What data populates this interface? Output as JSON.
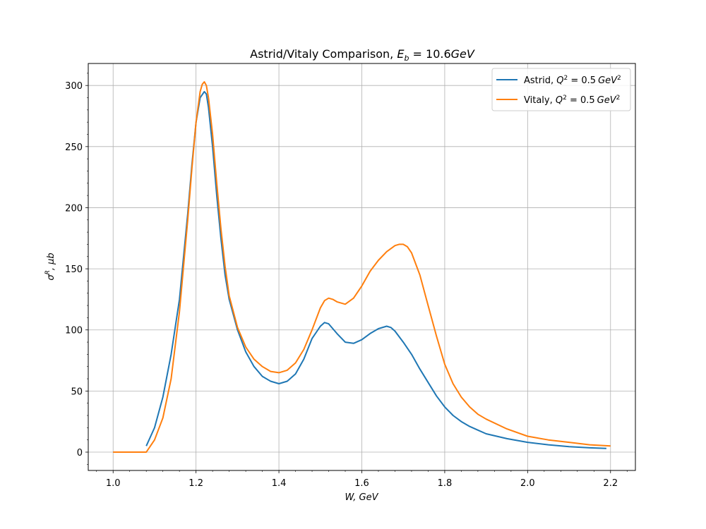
{
  "chart_data": {
    "type": "line",
    "title_prefix": "Astrid/Vitaly Comparison, ",
    "title_var": "E",
    "title_sub": "b",
    "title_suffix": " = 10.6",
    "title_unit": "GeV",
    "xlabel": "W, GeV",
    "ylabel_sym": "σ",
    "ylabel_sup": "R",
    "ylabel_rest": ", μb",
    "xlim": [
      0.94,
      2.26
    ],
    "ylim": [
      -15,
      318
    ],
    "xticks": [
      1.0,
      1.2,
      1.4,
      1.6,
      1.8,
      2.0,
      2.2
    ],
    "xtick_labels": [
      "1.0",
      "1.2",
      "1.4",
      "1.6",
      "1.8",
      "2.0",
      "2.2"
    ],
    "yticks": [
      0,
      50,
      100,
      150,
      200,
      250,
      300
    ],
    "ytick_labels": [
      "0",
      "50",
      "100",
      "150",
      "200",
      "250",
      "300"
    ],
    "grid": true,
    "legend_position": "top-right",
    "series": [
      {
        "name": "Astrid",
        "legend_prefix": "Astrid, ",
        "legend_q": "Q",
        "legend_q_sup": "2",
        "legend_eq": " = 0.5",
        "legend_unit": "GeV",
        "legend_unit_sup": "2",
        "color": "#1f77b4",
        "x": [
          1.08,
          1.1,
          1.12,
          1.14,
          1.16,
          1.18,
          1.19,
          1.2,
          1.21,
          1.22,
          1.225,
          1.23,
          1.24,
          1.25,
          1.26,
          1.27,
          1.28,
          1.3,
          1.32,
          1.34,
          1.36,
          1.38,
          1.4,
          1.42,
          1.44,
          1.46,
          1.48,
          1.5,
          1.51,
          1.52,
          1.53,
          1.54,
          1.56,
          1.58,
          1.6,
          1.62,
          1.64,
          1.66,
          1.67,
          1.68,
          1.7,
          1.72,
          1.74,
          1.76,
          1.78,
          1.8,
          1.82,
          1.84,
          1.86,
          1.88,
          1.9,
          1.95,
          2.0,
          2.05,
          2.1,
          2.15,
          2.19
        ],
        "y": [
          5,
          20,
          45,
          80,
          125,
          195,
          235,
          270,
          290,
          295,
          293,
          282,
          250,
          210,
          175,
          145,
          125,
          100,
          82,
          70,
          62,
          58,
          56,
          58,
          64,
          76,
          93,
          103,
          106,
          105,
          101,
          97,
          90,
          89,
          92,
          97,
          101,
          103,
          102,
          99,
          90,
          80,
          68,
          57,
          46,
          37,
          30,
          25,
          21,
          18,
          15,
          11,
          8,
          6,
          4.5,
          3.5,
          3
        ]
      },
      {
        "name": "Vitaly",
        "legend_prefix": "Vitaly, ",
        "legend_q": "Q",
        "legend_q_sup": "2",
        "legend_eq": " = 0.5",
        "legend_unit": "GeV",
        "legend_unit_sup": "2",
        "color": "#ff7f0e",
        "x": [
          1.0,
          1.02,
          1.04,
          1.06,
          1.08,
          1.1,
          1.12,
          1.14,
          1.16,
          1.18,
          1.19,
          1.2,
          1.21,
          1.215,
          1.22,
          1.225,
          1.23,
          1.24,
          1.25,
          1.26,
          1.27,
          1.28,
          1.3,
          1.32,
          1.34,
          1.36,
          1.38,
          1.4,
          1.42,
          1.44,
          1.46,
          1.48,
          1.5,
          1.51,
          1.52,
          1.53,
          1.54,
          1.56,
          1.58,
          1.6,
          1.62,
          1.64,
          1.66,
          1.68,
          1.69,
          1.7,
          1.71,
          1.72,
          1.74,
          1.76,
          1.78,
          1.8,
          1.82,
          1.84,
          1.86,
          1.88,
          1.9,
          1.95,
          2.0,
          2.05,
          2.1,
          2.15,
          2.2
        ],
        "y": [
          0,
          0,
          0,
          0,
          0,
          10,
          28,
          60,
          115,
          190,
          232,
          270,
          295,
          301,
          303,
          300,
          290,
          260,
          220,
          183,
          152,
          128,
          102,
          86,
          76,
          70,
          66,
          65,
          67,
          73,
          84,
          100,
          118,
          124,
          126,
          125,
          123,
          121,
          126,
          136,
          148,
          157,
          164,
          169,
          170,
          170,
          168,
          163,
          145,
          120,
          95,
          72,
          56,
          45,
          37,
          31,
          27,
          19,
          13,
          10,
          8,
          6,
          5
        ]
      }
    ]
  }
}
